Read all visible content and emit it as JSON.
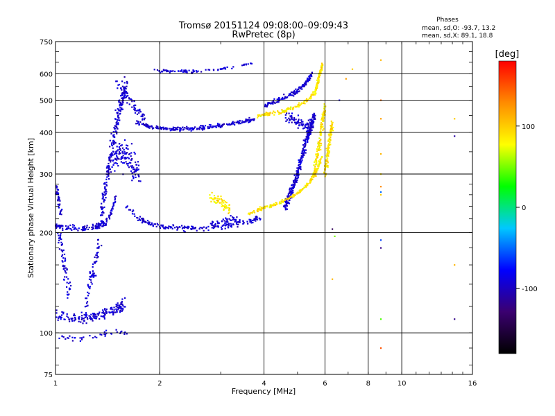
{
  "chart_data": {
    "type": "scatter",
    "title": "Tromsø 20151124 09:08:00–09:09:43",
    "subtitle": "RwPretec (8p)",
    "xlabel": "Frequency [MHz]",
    "ylabel": "Stationary phase Virtual Height [km]",
    "x_scale": "log",
    "y_scale": "log",
    "xlim": [
      1,
      16
    ],
    "ylim": [
      75,
      750
    ],
    "x_ticks": [
      1,
      2,
      4,
      6,
      8,
      10,
      16
    ],
    "y_ticks": [
      75,
      100,
      200,
      300,
      400,
      500,
      600,
      750
    ],
    "grid": true,
    "phases": {
      "heading": "Phases",
      "line_o": "mean, sd,O: -93.7, 13.2",
      "line_x": "mean, sd,X:  89.1, 18.8"
    },
    "colorbar": {
      "label": "[deg]",
      "range": [
        -180,
        180
      ],
      "ticks": [
        100,
        0,
        -100
      ],
      "colors": [
        "#000000",
        "#3b0070",
        "#0000ff",
        "#00c8ff",
        "#00ff00",
        "#ffff00",
        "#ff8c00",
        "#ff0000"
      ]
    },
    "series": [
      {
        "id": "O",
        "phase_mean": -93.7,
        "phase_sd": 13.2,
        "traces": [
          {
            "kind": "band",
            "f": [
              1.0,
              1.1,
              1.2,
              1.3,
              1.35,
              1.4,
              1.45,
              1.5
            ],
            "h": [
              210,
              207,
              206,
              208,
              212,
              215,
              230,
              260
            ],
            "spread": 0.03,
            "n": 140
          },
          {
            "kind": "band",
            "f": [
              1.0,
              1.02,
              1.04
            ],
            "h": [
              270,
              250,
              230
            ],
            "spread": 0.06,
            "n": 40
          },
          {
            "kind": "band",
            "f": [
              1.02,
              1.06,
              1.1
            ],
            "h": [
              200,
              160,
              130
            ],
            "spread": 0.08,
            "n": 60
          },
          {
            "kind": "band",
            "f": [
              1.0,
              1.1,
              1.2,
              1.3,
              1.4,
              1.5,
              1.58
            ],
            "h": [
              113,
              110,
              111,
              112,
              114,
              118,
              122
            ],
            "spread": 0.05,
            "n": 170
          },
          {
            "kind": "band",
            "f": [
              1.0,
              1.15,
              1.3,
              1.45,
              1.6
            ],
            "h": [
              97,
              96,
              98,
              100,
              100
            ],
            "spread": 0.03,
            "n": 40
          },
          {
            "kind": "band",
            "f": [
              1.2,
              1.28,
              1.35
            ],
            "h": [
              110,
              150,
              190
            ],
            "spread": 0.08,
            "n": 70
          },
          {
            "kind": "band",
            "f": [
              1.35,
              1.4,
              1.45,
              1.5,
              1.55,
              1.6
            ],
            "h": [
              220,
              280,
              350,
              420,
              500,
              560
            ],
            "spread": 0.08,
            "n": 230
          },
          {
            "kind": "band",
            "f": [
              1.45,
              1.55,
              1.65,
              1.75
            ],
            "h": [
              330,
              350,
              320,
              300
            ],
            "spread": 0.15,
            "n": 130
          },
          {
            "kind": "band",
            "f": [
              1.5,
              1.6,
              1.7,
              1.8
            ],
            "h": [
              560,
              520,
              470,
              440
            ],
            "spread": 0.05,
            "n": 60
          },
          {
            "kind": "band",
            "f": [
              1.7,
              1.9,
              2.1,
              2.3,
              2.6,
              2.9,
              3.2,
              3.5,
              3.75
            ],
            "h": [
              430,
              415,
              410,
              410,
              412,
              418,
              425,
              432,
              440
            ],
            "spread": 0.02,
            "n": 230
          },
          {
            "kind": "band",
            "f": [
              1.6,
              1.75,
              1.9,
              2.1,
              2.4,
              2.8,
              3.2,
              3.6,
              3.9
            ],
            "h": [
              240,
              220,
              212,
              208,
              206,
              207,
              210,
              216,
              222
            ],
            "spread": 0.025,
            "n": 190
          },
          {
            "kind": "band",
            "f": [
              1.9,
              2.2,
              2.6,
              3.0,
              3.4,
              3.7
            ],
            "h": [
              615,
              610,
              612,
              622,
              632,
              645
            ],
            "spread": 0.015,
            "n": 80
          },
          {
            "kind": "band",
            "f": [
              4.0,
              4.3,
              4.6,
              5.0,
              5.3,
              5.5
            ],
            "h": [
              480,
              495,
              510,
              535,
              565,
              600
            ],
            "spread": 0.025,
            "n": 140
          },
          {
            "kind": "band",
            "f": [
              4.6,
              4.8,
              5.0,
              5.2,
              5.4,
              5.6
            ],
            "h": [
              240,
              265,
              300,
              350,
              400,
              450
            ],
            "spread": 0.05,
            "n": 330
          },
          {
            "kind": "band",
            "f": [
              4.6,
              5.0,
              5.4
            ],
            "h": [
              450,
              430,
              420
            ],
            "spread": 0.06,
            "n": 70
          },
          {
            "kind": "band",
            "f": [
              2.8,
              3.0,
              3.2,
              3.4
            ],
            "h": [
              212,
              215,
              218,
              222
            ],
            "spread": 0.04,
            "n": 50
          }
        ]
      },
      {
        "id": "X",
        "phase_mean": 89.1,
        "phase_sd": 18.8,
        "traces": [
          {
            "kind": "band",
            "f": [
              3.6,
              4.0,
              4.5,
              5.0,
              5.4,
              5.7,
              5.9
            ],
            "h": [
              228,
              238,
              248,
              262,
              282,
              310,
              340
            ],
            "spread": 0.02,
            "n": 180
          },
          {
            "kind": "band",
            "f": [
              5.6,
              5.75,
              5.9,
              6.0
            ],
            "h": [
              300,
              360,
              430,
              480
            ],
            "spread": 0.05,
            "n": 140
          },
          {
            "kind": "band",
            "f": [
              6.0,
              6.15,
              6.3
            ],
            "h": [
              300,
              360,
              430
            ],
            "spread": 0.05,
            "n": 110
          },
          {
            "kind": "band",
            "f": [
              3.8,
              4.2,
              4.6,
              5.0,
              5.4,
              5.7
            ],
            "h": [
              450,
              455,
              465,
              480,
              505,
              540
            ],
            "spread": 0.02,
            "n": 120
          },
          {
            "kind": "band",
            "f": [
              5.6,
              5.75,
              5.9
            ],
            "h": [
              520,
              580,
              640
            ],
            "spread": 0.03,
            "n": 80
          },
          {
            "kind": "band",
            "f": [
              2.8,
              3.0,
              3.2
            ],
            "h": [
              255,
              245,
              235
            ],
            "spread": 0.05,
            "n": 60
          }
        ]
      }
    ],
    "isolated_points": [
      [
        8.7,
        660,
        110
      ],
      [
        8.7,
        500,
        140
      ],
      [
        8.7,
        440,
        120
      ],
      [
        8.7,
        345,
        110
      ],
      [
        8.7,
        300,
        90
      ],
      [
        8.7,
        275,
        130
      ],
      [
        8.7,
        265,
        -50
      ],
      [
        8.7,
        260,
        100
      ],
      [
        8.7,
        190,
        -60
      ],
      [
        8.7,
        180,
        -120
      ],
      [
        8.7,
        110,
        40
      ],
      [
        8.7,
        90,
        150
      ],
      [
        14.2,
        440,
        100
      ],
      [
        14.2,
        390,
        -110
      ],
      [
        14.2,
        160,
        110
      ],
      [
        14.2,
        110,
        -120
      ],
      [
        6.3,
        205,
        -140
      ],
      [
        6.4,
        195,
        50
      ],
      [
        6.3,
        145,
        110
      ],
      [
        7.2,
        620,
        100
      ],
      [
        6.9,
        580,
        120
      ],
      [
        6.6,
        500,
        -90
      ]
    ]
  }
}
